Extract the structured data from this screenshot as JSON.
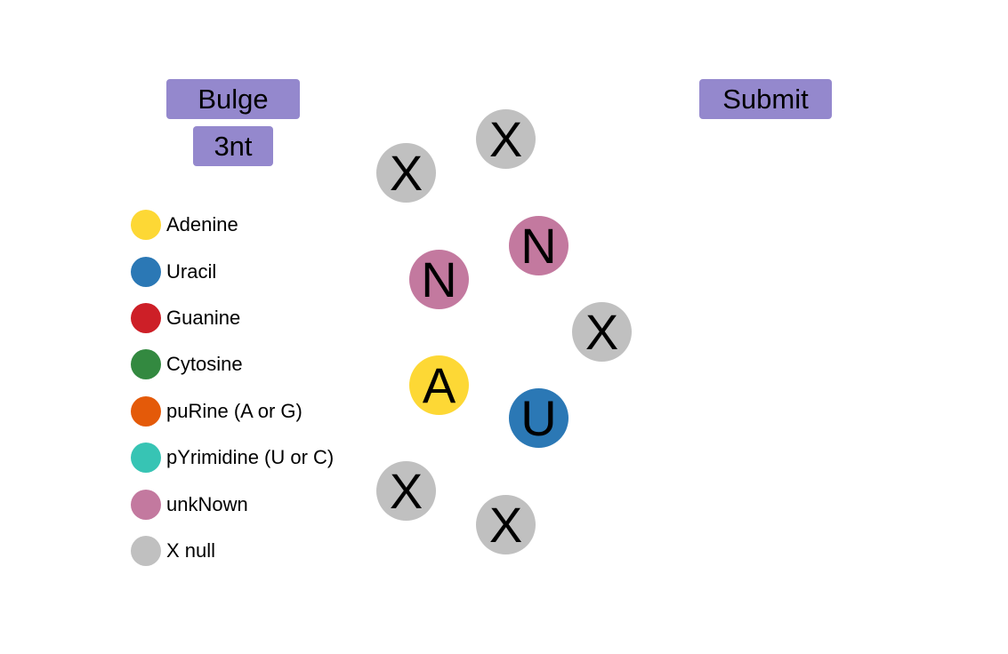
{
  "buttons": {
    "bulge": "Bulge",
    "size": "3nt",
    "submit": "Submit"
  },
  "button_color": "#9488cd",
  "legend": [
    {
      "label": "Adenine",
      "color": "#fdd835"
    },
    {
      "label": "Uracil",
      "color": "#2b78b5"
    },
    {
      "label": "Guanine",
      "color": "#cd1f27"
    },
    {
      "label": "Cytosine",
      "color": "#338940"
    },
    {
      "label": "puRine (A or G)",
      "color": "#e45a09"
    },
    {
      "label": "pYrimidine (U or C)",
      "color": "#37c4b4"
    },
    {
      "label": "unkNown",
      "color": "#c3799f"
    },
    {
      "label": "X null",
      "color": "#c0c0c0"
    }
  ],
  "nucleotides": [
    {
      "letter": "X",
      "color": "#c0c0c0"
    },
    {
      "letter": "X",
      "color": "#c0c0c0"
    },
    {
      "letter": "N",
      "color": "#c3799f"
    },
    {
      "letter": "N",
      "color": "#c3799f"
    },
    {
      "letter": "X",
      "color": "#c0c0c0"
    },
    {
      "letter": "A",
      "color": "#fdd835"
    },
    {
      "letter": "U",
      "color": "#2b78b5"
    },
    {
      "letter": "X",
      "color": "#c0c0c0"
    },
    {
      "letter": "X",
      "color": "#c0c0c0"
    }
  ]
}
